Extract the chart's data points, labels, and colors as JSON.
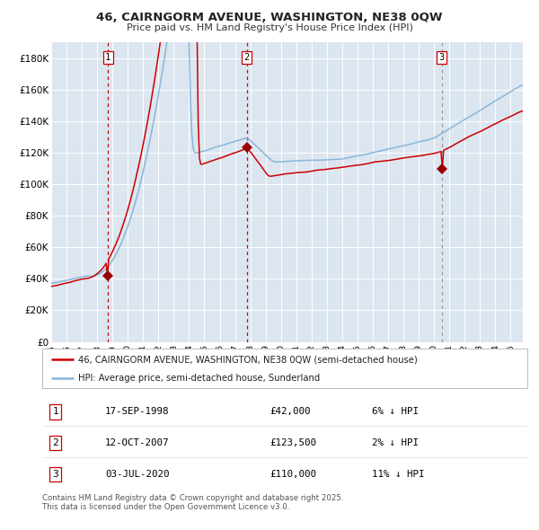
{
  "title": "46, CAIRNGORM AVENUE, WASHINGTON, NE38 0QW",
  "subtitle": "Price paid vs. HM Land Registry's House Price Index (HPI)",
  "bg_color": "#dce6f0",
  "plot_bg_color": "#dce6f0",
  "fig_bg_color": "#ffffff",
  "grid_color": "#ffffff",
  "ytick_labels": [
    "£0",
    "£20K",
    "£40K",
    "£60K",
    "£80K",
    "£100K",
    "£120K",
    "£140K",
    "£160K",
    "£180K"
  ],
  "ytick_values": [
    0,
    20000,
    40000,
    60000,
    80000,
    100000,
    120000,
    140000,
    160000,
    180000
  ],
  "ylim": [
    0,
    190000
  ],
  "xlim_start": 1995.0,
  "xlim_end": 2025.8,
  "sale_dates": [
    1998.71,
    2007.78,
    2020.5
  ],
  "sale_prices": [
    42000,
    123500,
    110000
  ],
  "sale_labels": [
    "1",
    "2",
    "3"
  ],
  "vline_colors_red": [
    "#cc0000",
    "#cc0000"
  ],
  "vline_color_gray": "#999999",
  "legend_line1": "46, CAIRNGORM AVENUE, WASHINGTON, NE38 0QW (semi-detached house)",
  "legend_line2": "HPI: Average price, semi-detached house, Sunderland",
  "table_entries": [
    {
      "num": "1",
      "date": "17-SEP-1998",
      "price": "£42,000",
      "change": "6% ↓ HPI"
    },
    {
      "num": "2",
      "date": "12-OCT-2007",
      "price": "£123,500",
      "change": "2% ↓ HPI"
    },
    {
      "num": "3",
      "date": "03-JUL-2020",
      "price": "£110,000",
      "change": "11% ↓ HPI"
    }
  ],
  "footer": "Contains HM Land Registry data © Crown copyright and database right 2025.\nThis data is licensed under the Open Government Licence v3.0.",
  "red_line_color": "#cc0000",
  "blue_line_color": "#85b4d9",
  "marker_color": "#990000",
  "seed": 42
}
